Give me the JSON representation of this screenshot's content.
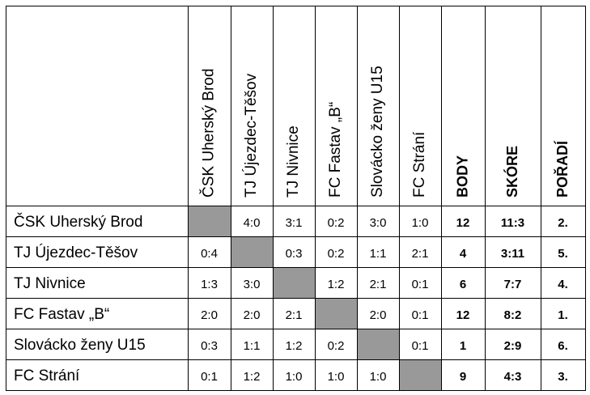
{
  "columns": [
    "ČSK Uherský Brod",
    "TJ Újezdec-Těšov",
    "TJ Nivnice",
    "FC Fastav „B“",
    "Slovácko ženy U15",
    "FC Strání",
    "BODY",
    "SKÓRE",
    "POŘADÍ"
  ],
  "rows": [
    {
      "team": "ČSK Uherský Brod",
      "results": [
        "",
        "4:0",
        "3:1",
        "0:2",
        "3:0",
        "1:0"
      ],
      "body": "12",
      "skore": "11:3",
      "poradi": "2."
    },
    {
      "team": "TJ Újezdec-Těšov",
      "results": [
        "0:4",
        "",
        "0:3",
        "0:2",
        "1:1",
        "2:1"
      ],
      "body": "4",
      "skore": "3:11",
      "poradi": "5."
    },
    {
      "team": "TJ Nivnice",
      "results": [
        "1:3",
        "3:0",
        "",
        "1:2",
        "2:1",
        "0:1"
      ],
      "body": "6",
      "skore": "7:7",
      "poradi": "4."
    },
    {
      "team": "FC Fastav „B“",
      "results": [
        "2:0",
        "2:0",
        "2:1",
        "",
        "2:0",
        "0:1"
      ],
      "body": "12",
      "skore": "8:2",
      "poradi": "1."
    },
    {
      "team": "Slovácko ženy U15",
      "results": [
        "0:3",
        "1:1",
        "1:2",
        "0:2",
        "",
        "0:1"
      ],
      "body": "1",
      "skore": "2:9",
      "poradi": "6."
    },
    {
      "team": "FC Strání",
      "results": [
        "0:1",
        "1:2",
        "1:0",
        "1:0",
        "1:0",
        ""
      ],
      "body": "9",
      "skore": "4:3",
      "poradi": "3."
    }
  ],
  "colors": {
    "grid": "#000000",
    "diagonal_fill": "#999999",
    "background": "#ffffff"
  }
}
